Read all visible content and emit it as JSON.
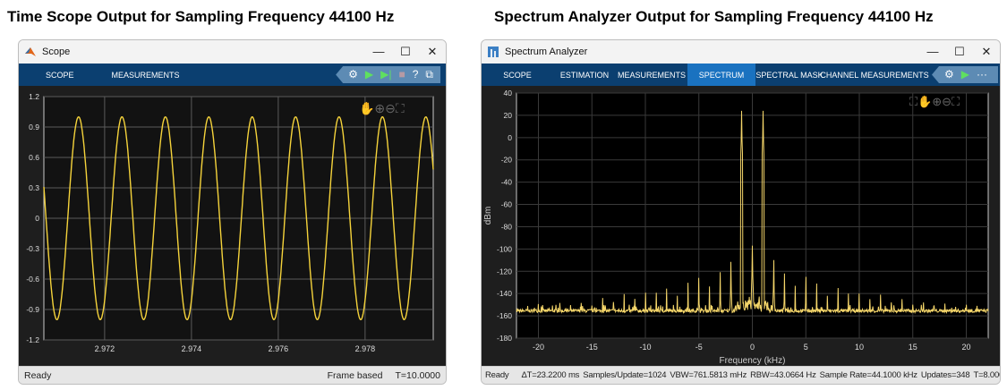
{
  "titles": {
    "left": "Time Scope Output for Sampling Frequency 44100 Hz",
    "right": "Spectrum Analyzer Output for Sampling Frequency 44100 Hz"
  },
  "scope": {
    "window_title": "Scope",
    "tabs": [
      "SCOPE",
      "MEASUREMENTS"
    ],
    "status": {
      "left": "Ready",
      "mode": "Frame based",
      "time": "T=10.0000"
    },
    "trace_color": "#f5d33b"
  },
  "spectrum": {
    "window_title": "Spectrum Analyzer",
    "tabs": [
      "SCOPE",
      "ESTIMATION",
      "MEASUREMENTS",
      "SPECTRUM",
      "SPECTRAL MASK",
      "CHANNEL MEASUREMENTS"
    ],
    "active_tab": "SPECTRUM",
    "status": {
      "left": "Ready",
      "dt": "ΔT=23.2200 ms",
      "samples": "Samples/Update=1024",
      "vbw": "VBW=761.5813 mHz",
      "rbw": "RBW=43.0664 Hz",
      "rate": "Sample Rate=44.1000 kHz",
      "updates": "Updates=348",
      "time": "T=8.0000"
    },
    "trace_color": "#f5d66a"
  },
  "chart_data": [
    {
      "type": "line",
      "title": "",
      "xlabel": "",
      "ylabel": "",
      "xlim": [
        2.9706,
        2.97957
      ],
      "ylim": [
        -1.2,
        1.2
      ],
      "x_ticks": [
        "2.972",
        "2.974",
        "2.976",
        "2.978"
      ],
      "y_ticks": [
        "1.2",
        "0.9",
        "0.6",
        "0.3",
        "0",
        "-0.3",
        "-0.6",
        "-0.9",
        "-1.2"
      ],
      "series": [
        {
          "function": "sine",
          "amplitude": 1,
          "frequency_hz": 1000,
          "first_peak_t": 2.9714
        }
      ],
      "grid": true
    },
    {
      "type": "line",
      "title": "",
      "xlabel": "Frequency (kHz)",
      "ylabel": "dBm",
      "xlim": [
        -22.05,
        22.05
      ],
      "ylim": [
        -180,
        40
      ],
      "x_ticks": [
        "-20",
        "-15",
        "-10",
        "-5",
        "0",
        "5",
        "10",
        "15",
        "20"
      ],
      "y_ticks": [
        "40",
        "20",
        "0",
        "-20",
        "-40",
        "-60",
        "-80",
        "-100",
        "-120",
        "-140",
        "-160",
        "-180"
      ],
      "noise_floor_dbm": -157,
      "tones": [
        {
          "f_khz": -1,
          "dbm": 24
        },
        {
          "f_khz": 1,
          "dbm": 24
        },
        {
          "f_khz": 0,
          "dbm": -97
        }
      ],
      "spurs_by_abs_khz": [
        [
          2,
          -110
        ],
        [
          3,
          -122
        ],
        [
          4,
          -133
        ],
        [
          5,
          -125
        ],
        [
          6,
          -131
        ],
        [
          7,
          -142
        ],
        [
          8,
          -135
        ],
        [
          9,
          -140
        ],
        [
          10,
          -140
        ],
        [
          11,
          -145
        ],
        [
          12,
          -141
        ],
        [
          13,
          -148
        ],
        [
          14,
          -145
        ],
        [
          15,
          -150
        ],
        [
          16,
          -148
        ],
        [
          17,
          -151
        ],
        [
          18,
          -149
        ],
        [
          19,
          -152
        ],
        [
          20,
          -150
        ],
        [
          21,
          -151
        ]
      ],
      "grid": true
    }
  ]
}
